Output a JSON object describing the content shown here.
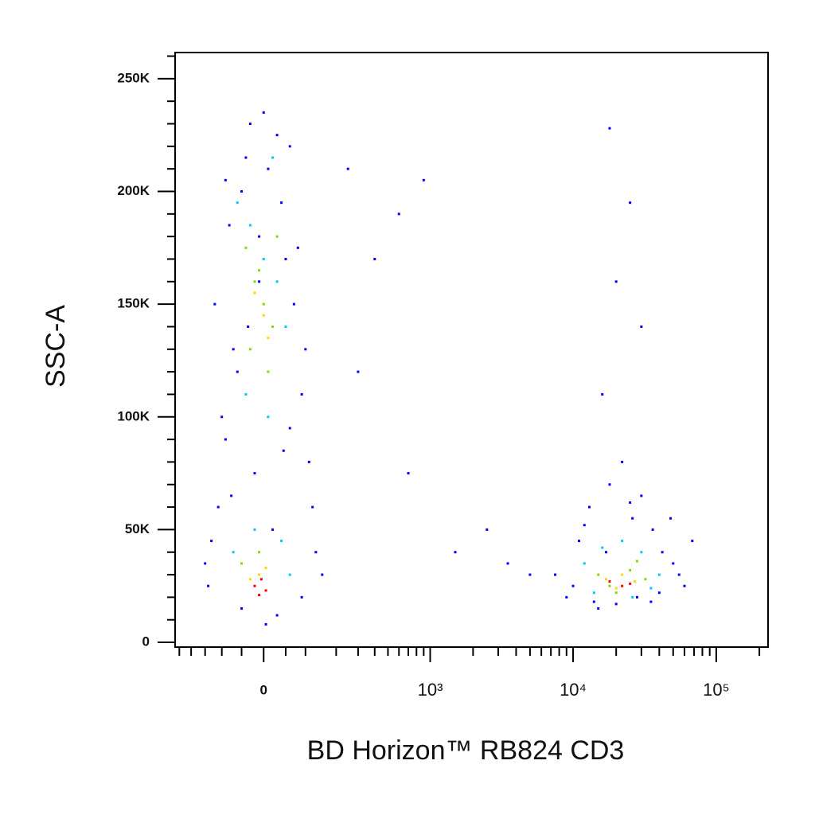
{
  "chart_data": {
    "type": "scatter",
    "x_label": "BD Horizon™ RB824 CD3",
    "y_label": "SSC-A",
    "xscale": "biexponential",
    "xlim": [
      -270,
      230000
    ],
    "xticks": [
      0,
      {
        "value": 1000,
        "label": "10³"
      },
      {
        "value": 10000,
        "label": "10⁴"
      },
      {
        "value": 100000,
        "label": "10⁵"
      }
    ],
    "xminorticks": [
      -250,
      -200,
      -150,
      -100,
      -50,
      50,
      100,
      200,
      300,
      400,
      500,
      600,
      700,
      800,
      900,
      2000,
      3000,
      4000,
      5000,
      6000,
      7000,
      8000,
      9000,
      20000,
      30000,
      40000,
      50000,
      60000,
      70000,
      80000,
      90000,
      200000
    ],
    "ylim": [
      -2100,
      261600
    ],
    "yticks": [
      0,
      {
        "value": 50000,
        "label": "50K"
      },
      {
        "value": 100000,
        "label": "100K"
      },
      {
        "value": 150000,
        "label": "150K"
      },
      {
        "value": 200000,
        "label": "200K"
      },
      {
        "value": 250000,
        "label": "250K"
      }
    ],
    "yminorticks": [
      10000,
      20000,
      30000,
      40000,
      60000,
      70000,
      80000,
      90000,
      110000,
      120000,
      130000,
      140000,
      160000,
      170000,
      180000,
      190000,
      210000,
      220000,
      230000,
      240000,
      260000
    ],
    "series": [
      {
        "color": "#0000ff",
        "x": [
          -140,
          -110,
          -90,
          -70,
          -50,
          -30,
          -10,
          10,
          30,
          50,
          70,
          90,
          110,
          130,
          -120,
          -80,
          -40,
          0,
          40,
          80,
          120,
          -100,
          -60,
          -20,
          20,
          60,
          100,
          -130,
          -50,
          30,
          90,
          -90,
          -10,
          60,
          150,
          -150,
          5,
          -35,
          45,
          -75,
          7500,
          9000,
          11000,
          13000,
          15000,
          18000,
          22000,
          26000,
          30000,
          36000,
          42000,
          50000,
          60000,
          68000,
          10000,
          14000,
          20000,
          28000,
          40000,
          55000,
          12000,
          17000,
          25000,
          35000,
          48000,
          250,
          400,
          600,
          900,
          1500,
          2500,
          3500,
          5000,
          700,
          300,
          18000,
          20000,
          25000,
          16000,
          30000
        ],
        "values": [
          25000,
          60000,
          90000,
          130000,
          200000,
          230000,
          180000,
          210000,
          225000,
          170000,
          150000,
          110000,
          80000,
          40000,
          150000,
          185000,
          215000,
          235000,
          195000,
          175000,
          60000,
          100000,
          120000,
          75000,
          50000,
          95000,
          130000,
          45000,
          15000,
          12000,
          20000,
          205000,
          160000,
          220000,
          30000,
          35000,
          8000,
          140000,
          85000,
          65000,
          30000,
          20000,
          45000,
          60000,
          15000,
          70000,
          80000,
          55000,
          65000,
          50000,
          40000,
          35000,
          25000,
          45000,
          25000,
          18000,
          17000,
          20000,
          22000,
          30000,
          52000,
          40000,
          62000,
          18000,
          55000,
          210000,
          170000,
          190000,
          205000,
          40000,
          50000,
          35000,
          30000,
          75000,
          120000,
          228000,
          160000,
          195000,
          110000,
          140000
        ]
      },
      {
        "color": "#00c8ff",
        "x": [
          -60,
          -30,
          0,
          30,
          50,
          -40,
          10,
          40,
          -20,
          20,
          -70,
          60,
          12000,
          16000,
          22000,
          30000,
          40000,
          14000,
          26000,
          35000
        ],
        "values": [
          195000,
          185000,
          170000,
          160000,
          140000,
          110000,
          100000,
          45000,
          50000,
          215000,
          40000,
          30000,
          35000,
          42000,
          45000,
          40000,
          30000,
          22000,
          20000,
          24000
        ]
      },
      {
        "color": "#7fdc00",
        "x": [
          -40,
          -20,
          0,
          20,
          -30,
          10,
          -10,
          30,
          -50,
          -10,
          15000,
          18000,
          25000,
          32000,
          20000,
          28000
        ],
        "values": [
          175000,
          160000,
          150000,
          140000,
          130000,
          120000,
          165000,
          180000,
          35000,
          40000,
          30000,
          25000,
          32000,
          28000,
          22000,
          36000
        ]
      },
      {
        "color": "#ffd700",
        "x": [
          -20,
          0,
          10,
          -10,
          -30,
          5,
          17000,
          22000,
          27000,
          20000
        ],
        "values": [
          155000,
          145000,
          135000,
          30000,
          28000,
          33000,
          28000,
          30000,
          27000,
          24000
        ]
      },
      {
        "color": "#ff0000",
        "x": [
          -20,
          -5,
          5,
          -10,
          18000,
          22000,
          25000
        ],
        "values": [
          25000,
          28000,
          23000,
          21000,
          27000,
          25000,
          26000
        ]
      }
    ]
  }
}
